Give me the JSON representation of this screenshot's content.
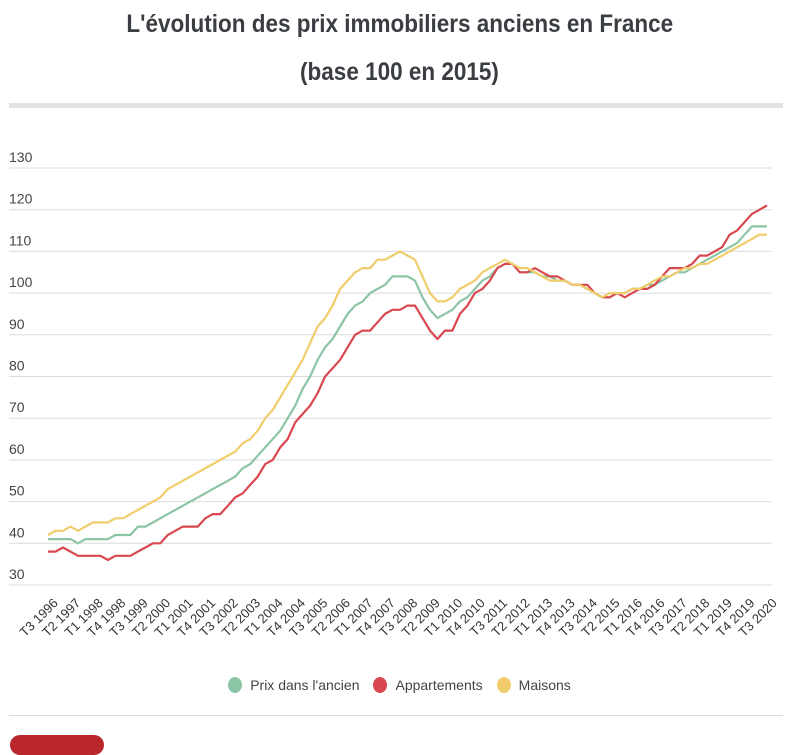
{
  "title": {
    "line1": "L'évolution des prix immobiliers anciens en France",
    "line2": "(base 100 en 2015)"
  },
  "chart_data": {
    "type": "line",
    "title": "L'évolution des prix immobiliers anciens en France (base 100 en 2015)",
    "xlabel": "",
    "ylabel": "",
    "ylim": [
      30,
      130
    ],
    "yticks": [
      "30",
      "40",
      "50",
      "60",
      "70",
      "80",
      "90",
      "100",
      "110",
      "120",
      "130"
    ],
    "grid": true,
    "legend_position": "bottom-center",
    "x_start": "T3 1996",
    "x_end": "T3 2020",
    "x_frequency": "quarterly",
    "xtick_labels": [
      "T3 1996",
      "T2 1997",
      "T1 1998",
      "T4 1998",
      "T3 1999",
      "T2 2000",
      "T1 2001",
      "T4 2001",
      "T3 2002",
      "T2 2003",
      "T1 2004",
      "T4 2004",
      "T3 2005",
      "T2 2006",
      "T1 2007",
      "T4 2007",
      "T3 2008",
      "T2 2009",
      "T1 2010",
      "T4 2010",
      "T3 2011",
      "T2 2012",
      "T1 2013",
      "T4 2013",
      "T3 2014",
      "T2 2015",
      "T1 2016",
      "T4 2016",
      "T3 2017",
      "T2 2018",
      "T1 2019",
      "T4 2019",
      "T3 2020"
    ],
    "series": [
      {
        "name": "Prix dans l'ancien",
        "color": "#8cc5a5",
        "values": [
          41,
          41,
          41,
          41,
          40,
          41,
          41,
          41,
          41,
          42,
          42,
          42,
          44,
          44,
          45,
          46,
          47,
          48,
          49,
          50,
          51,
          52,
          53,
          54,
          55,
          56,
          58,
          59,
          61,
          63,
          65,
          67,
          70,
          73,
          77,
          80,
          84,
          87,
          89,
          92,
          95,
          97,
          98,
          100,
          101,
          102,
          104,
          104,
          104,
          103,
          99,
          96,
          94,
          95,
          96,
          98,
          99,
          101,
          103,
          104,
          106,
          107,
          107,
          105,
          105,
          105,
          104,
          104,
          103,
          103,
          102,
          102,
          101,
          100,
          99,
          99,
          100,
          100,
          101,
          101,
          102,
          102,
          103,
          104,
          105,
          105,
          106,
          107,
          108,
          109,
          110,
          111,
          112,
          114,
          116,
          116,
          116
        ]
      },
      {
        "name": "Appartements",
        "color": "#d9474f",
        "values": [
          38,
          38,
          39,
          38,
          37,
          37,
          37,
          37,
          36,
          37,
          37,
          37,
          38,
          39,
          40,
          40,
          42,
          43,
          44,
          44,
          44,
          46,
          47,
          47,
          49,
          51,
          52,
          54,
          56,
          59,
          60,
          63,
          65,
          69,
          71,
          73,
          76,
          80,
          82,
          84,
          87,
          90,
          91,
          91,
          93,
          95,
          96,
          96,
          97,
          97,
          94,
          91,
          89,
          91,
          91,
          95,
          97,
          100,
          101,
          103,
          106,
          107,
          107,
          105,
          105,
          106,
          105,
          104,
          104,
          103,
          102,
          102,
          102,
          100,
          99,
          99,
          100,
          99,
          100,
          101,
          101,
          102,
          104,
          106,
          106,
          106,
          107,
          109,
          109,
          110,
          111,
          114,
          115,
          117,
          119,
          120,
          121
        ]
      },
      {
        "name": "Maisons",
        "color": "#f0cc6a",
        "values": [
          42,
          43,
          43,
          44,
          43,
          44,
          45,
          45,
          45,
          46,
          46,
          47,
          48,
          49,
          50,
          51,
          53,
          54,
          55,
          56,
          57,
          58,
          59,
          60,
          61,
          62,
          64,
          65,
          67,
          70,
          72,
          75,
          78,
          81,
          84,
          88,
          92,
          94,
          97,
          101,
          103,
          105,
          106,
          106,
          108,
          108,
          109,
          110,
          109,
          108,
          104,
          100,
          98,
          98,
          99,
          101,
          102,
          103,
          105,
          106,
          107,
          108,
          107,
          106,
          106,
          105,
          104,
          103,
          103,
          103,
          102,
          102,
          101,
          100,
          99,
          100,
          100,
          100,
          101,
          101,
          102,
          103,
          104,
          104,
          105,
          106,
          106,
          107,
          107,
          108,
          109,
          110,
          111,
          112,
          113,
          114,
          114
        ]
      }
    ]
  },
  "legend": [
    {
      "label": "Prix dans l'ancien",
      "color": "#8cc5a5"
    },
    {
      "label": "Appartements",
      "color": "#d9474f"
    },
    {
      "label": "Maisons",
      "color": "#f0cc6a"
    }
  ]
}
